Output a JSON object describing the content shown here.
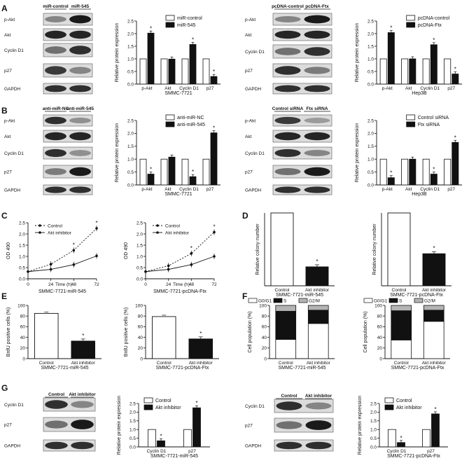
{
  "panels": {
    "A": {
      "letter": "A",
      "left": {
        "blot_headers": [
          "miR-control",
          "miR-545"
        ],
        "blot_rows": [
          "p-Akt",
          "Akt",
          "Cyclin D1",
          "p27",
          "GAPDH"
        ]
      },
      "right": {
        "blot_headers": [
          "pcDNA-control",
          "pcDNA-Ftx"
        ],
        "blot_rows": [
          "p-Akt",
          "Akt",
          "Cyclin D1",
          "p27",
          "GAPDH"
        ]
      }
    },
    "B": {
      "letter": "B",
      "left": {
        "blot_headers": [
          "anti-miR-NC",
          "anti-miR-545"
        ],
        "blot_rows": [
          "p-Akt",
          "Akt",
          "Cyclin D1",
          "p27",
          "GAPDH"
        ]
      },
      "right": {
        "blot_headers": [
          "Control siRNA",
          "Ftx siRNA"
        ],
        "blot_rows": [
          "p-Akt",
          "Akt",
          "Cyclin D1",
          "p27",
          "GAPDH"
        ]
      }
    },
    "C": {
      "letter": "C"
    },
    "D": {
      "letter": "D"
    },
    "E": {
      "letter": "E"
    },
    "F": {
      "letter": "F"
    },
    "G": {
      "letter": "G",
      "left": {
        "blot_headers": [
          "Control",
          "Akt inhibitor"
        ],
        "blot_rows": [
          "Cyclin D1",
          "p27",
          "GAPDH"
        ]
      },
      "right": {
        "blot_headers": [
          "Control",
          "Akt inhibitor"
        ],
        "blot_rows": [
          "Cyclin D1",
          "p27",
          "GAPDH"
        ]
      }
    }
  },
  "chart_data": [
    {
      "id": "A1",
      "type": "bar",
      "ylabel": "Relative protein expression",
      "xlabel": "SMMC-7721",
      "ylim": [
        0,
        2.5
      ],
      "yticks": [
        "0.0",
        "0.5",
        "1.0",
        "1.5",
        "2.0",
        "2.5"
      ],
      "categories": [
        "p-Akt",
        "Akt",
        "Cyclin D1",
        "p27"
      ],
      "series": [
        {
          "name": "miR-control",
          "color": "#ffffff",
          "values": [
            1,
            1,
            1,
            1
          ]
        },
        {
          "name": "miR-545",
          "color": "#111111",
          "values": [
            2.02,
            0.99,
            1.57,
            0.3
          ]
        }
      ],
      "sig": [
        true,
        false,
        true,
        true
      ],
      "legend": "top"
    },
    {
      "id": "A2",
      "type": "bar",
      "ylabel": "Relative protein expression",
      "xlabel": "Hep3B",
      "ylim": [
        0,
        2.5
      ],
      "yticks": [
        "0.0",
        "0.5",
        "1.0",
        "1.5",
        "2.0",
        "2.5"
      ],
      "categories": [
        "p-Akt",
        "Akt",
        "Cyclin D1",
        "p27"
      ],
      "series": [
        {
          "name": "pcDNA-control",
          "color": "#ffffff",
          "values": [
            1,
            1,
            1,
            1
          ]
        },
        {
          "name": "pcDNA-Ftx",
          "color": "#111111",
          "values": [
            2.04,
            1.0,
            1.56,
            0.4
          ]
        }
      ],
      "sig": [
        true,
        false,
        true,
        true
      ],
      "legend": "top"
    },
    {
      "id": "B1",
      "type": "bar",
      "ylabel": "Relative protein expression",
      "xlabel": "SMMC-7721",
      "ylim": [
        0,
        2.5
      ],
      "yticks": [
        "0.0",
        "0.5",
        "1.0",
        "1.5",
        "2.0",
        "2.5"
      ],
      "categories": [
        "p-Akt",
        "Akt",
        "Cyclin D1",
        "p27"
      ],
      "series": [
        {
          "name": "anti-miR-NC",
          "color": "#ffffff",
          "values": [
            1,
            1,
            1,
            1
          ]
        },
        {
          "name": "anti-miR-545",
          "color": "#111111",
          "values": [
            0.42,
            1.08,
            0.32,
            2.02
          ]
        }
      ],
      "sig": [
        true,
        false,
        true,
        true
      ],
      "legend": "top"
    },
    {
      "id": "B2",
      "type": "bar",
      "ylabel": "Relative protein expression",
      "xlabel": "Hep3B",
      "ylim": [
        0,
        2.5
      ],
      "yticks": [
        "0.0",
        "0.5",
        "1.0",
        "1.5",
        "2.0",
        "2.5"
      ],
      "categories": [
        "p-Akt",
        "Akt",
        "Cyclin D1",
        "p27"
      ],
      "series": [
        {
          "name": "Control siRNA",
          "color": "#ffffff",
          "values": [
            1,
            1,
            1,
            1
          ]
        },
        {
          "name": "Ftx siRNA",
          "color": "#111111",
          "values": [
            0.28,
            1.0,
            0.42,
            1.65
          ]
        }
      ],
      "sig": [
        true,
        false,
        true,
        true
      ],
      "legend": "top"
    },
    {
      "id": "C1",
      "type": "line",
      "ylabel": "OD 490",
      "xlabel": "SMMC-7721-miR-545",
      "x_axis_label": "Time (h)",
      "ylim": [
        0,
        2.5
      ],
      "yticks": [
        "0.0",
        "0.5",
        "1.0",
        "1.5",
        "2.0",
        "2.5"
      ],
      "xticks": [
        "0",
        "24",
        "48",
        "72"
      ],
      "x": [
        0,
        24,
        48,
        72
      ],
      "series": [
        {
          "name": "Control",
          "dashed": true,
          "values": [
            0.32,
            0.65,
            1.27,
            2.25
          ]
        },
        {
          "name": "Akt inhibitor",
          "dashed": false,
          "values": [
            0.32,
            0.42,
            0.63,
            1.02
          ]
        }
      ],
      "sig_x": [
        48,
        72
      ],
      "legend": "top-left"
    },
    {
      "id": "C2",
      "type": "line",
      "ylabel": "OD 490",
      "xlabel": "SMMC-7721-pcDNA-Ftx",
      "x_axis_label": "Time (h)",
      "ylim": [
        0,
        2.5
      ],
      "yticks": [
        "0.0",
        "0.5",
        "1.0",
        "1.5",
        "2.0",
        "2.5"
      ],
      "xticks": [
        "0",
        "24",
        "48",
        "72"
      ],
      "x": [
        0,
        24,
        48,
        72
      ],
      "series": [
        {
          "name": "Control",
          "dashed": true,
          "values": [
            0.32,
            0.58,
            1.13,
            2.08
          ]
        },
        {
          "name": "Akt inhibitor",
          "dashed": false,
          "values": [
            0.32,
            0.42,
            0.63,
            1.0
          ]
        }
      ],
      "sig_x": [
        48,
        72
      ],
      "legend": "top-left"
    },
    {
      "id": "D1",
      "type": "bar",
      "ylabel": "Relative colony number",
      "xlabel": "SMMC-7721-miR-545",
      "ylim": [
        0,
        1.0
      ],
      "categories": [
        "Control",
        "Akt inhibitor"
      ],
      "values": [
        1.0,
        0.26
      ],
      "colors": [
        "#ffffff",
        "#111111"
      ],
      "sig": [
        false,
        true
      ]
    },
    {
      "id": "D2",
      "type": "bar",
      "ylabel": "Relative colony number",
      "xlabel": "SMMC-7721-pcDNA-Ftx",
      "ylim": [
        0,
        1.0
      ],
      "categories": [
        "Control",
        "Akt inhibitor"
      ],
      "values": [
        1.0,
        0.44
      ],
      "colors": [
        "#ffffff",
        "#111111"
      ],
      "sig": [
        false,
        true
      ]
    },
    {
      "id": "E1",
      "type": "bar",
      "ylabel": "BrdU positive cells (%)",
      "xlabel": "SMMC-7721-miR-545",
      "ylim": [
        0,
        100
      ],
      "yticks": [
        "0",
        "20",
        "40",
        "60",
        "80",
        "100"
      ],
      "categories": [
        "Control",
        "Akt inhibitor"
      ],
      "values": [
        85,
        33
      ],
      "colors": [
        "#ffffff",
        "#111111"
      ],
      "sig": [
        false,
        true
      ]
    },
    {
      "id": "E2",
      "type": "bar",
      "ylabel": "BrdU positive cells (%)",
      "xlabel": "SMMC-7721-pcDNA-Ftx",
      "ylim": [
        0,
        100
      ],
      "yticks": [
        "0",
        "20",
        "40",
        "60",
        "80",
        "100"
      ],
      "categories": [
        "Control",
        "Akt inhibitor"
      ],
      "values": [
        79,
        37
      ],
      "colors": [
        "#ffffff",
        "#111111"
      ],
      "sig": [
        false,
        true
      ]
    },
    {
      "id": "F1",
      "type": "bar",
      "stacked": true,
      "ylabel": "Cell population (%)",
      "xlabel": "SMMC-7721-miR-545",
      "ylim": [
        0,
        100
      ],
      "yticks": [
        "0",
        "20",
        "40",
        "60",
        "80",
        "100"
      ],
      "categories": [
        "Control",
        "Akt inhibitor"
      ],
      "series": [
        {
          "name": "G0/G1",
          "color": "#ffffff",
          "values": [
            36,
            66
          ]
        },
        {
          "name": "S",
          "color": "#111111",
          "values": [
            53,
            25
          ]
        },
        {
          "name": "G2/M",
          "color": "#b4b4b4",
          "values": [
            11,
            9
          ]
        }
      ],
      "legend": "top"
    },
    {
      "id": "F2",
      "type": "bar",
      "stacked": true,
      "ylabel": "Cell population (%)",
      "xlabel": "SMMC-7721-pcDNA-Ftx",
      "ylim": [
        0,
        100
      ],
      "yticks": [
        "0",
        "20",
        "40",
        "60",
        "80",
        "100"
      ],
      "categories": [
        "Control",
        "Akt inhibitor"
      ],
      "series": [
        {
          "name": "G0/G1",
          "color": "#ffffff",
          "values": [
            35,
            70
          ]
        },
        {
          "name": "S",
          "color": "#111111",
          "values": [
            55,
            21
          ]
        },
        {
          "name": "G2/M",
          "color": "#b4b4b4",
          "values": [
            10,
            9
          ]
        }
      ],
      "legend": "top"
    },
    {
      "id": "G1",
      "type": "bar",
      "ylabel": "Relative protein expression",
      "xlabel": "SMMC-7721-miR-545",
      "ylim": [
        0,
        2.5
      ],
      "yticks": [
        "0.0",
        "0.5",
        "1.0",
        "1.5",
        "2.0",
        "2.5"
      ],
      "categories": [
        "Cyclin D1",
        "p27"
      ],
      "series": [
        {
          "name": "Control",
          "color": "#ffffff",
          "values": [
            1,
            1
          ]
        },
        {
          "name": "Akt inhibitor",
          "color": "#111111",
          "values": [
            0.35,
            2.25
          ]
        }
      ],
      "sig": [
        true,
        true
      ],
      "legend": "top-left"
    },
    {
      "id": "G2",
      "type": "bar",
      "ylabel": "Relative protein expression",
      "xlabel": "SMMC-7721-pcDNA-Ftx",
      "ylim": [
        0,
        2.5
      ],
      "yticks": [
        "0.0",
        "0.5",
        "1.0",
        "1.5",
        "2.0",
        "2.5"
      ],
      "categories": [
        "Cyclin D1",
        "p27"
      ],
      "series": [
        {
          "name": "Control",
          "color": "#ffffff",
          "values": [
            1,
            1
          ]
        },
        {
          "name": "Akt inhibitor",
          "color": "#111111",
          "values": [
            0.25,
            1.9
          ]
        }
      ],
      "sig": [
        true,
        true
      ],
      "legend": "top-left"
    }
  ]
}
